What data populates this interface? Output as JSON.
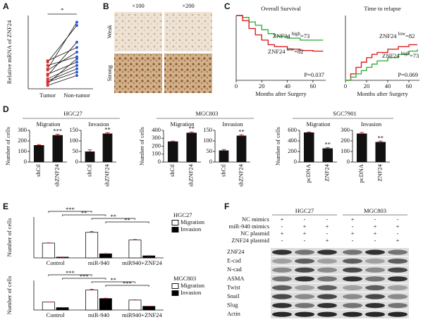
{
  "panel_labels": [
    "A",
    "B",
    "C",
    "D",
    "E",
    "F"
  ],
  "histology": {
    "magnifications": [
      "×100",
      "×200"
    ],
    "rows": [
      "Weak",
      "Strong"
    ]
  },
  "d_groups": [
    "HGC27",
    "MGC803",
    "SGC7901"
  ],
  "chart_data": [
    {
      "type": "paired",
      "ylabel": "Relative mRNA of ZNF24",
      "categories": [
        "Tumor",
        "Non-tumor"
      ],
      "colors": [
        "#e03030",
        "#2a5bd7"
      ],
      "values": [
        [
          0.42,
          0.62
        ],
        [
          0.4,
          0.95
        ],
        [
          0.35,
          0.48
        ],
        [
          0.3,
          1.0
        ],
        [
          0.28,
          0.55
        ],
        [
          0.22,
          0.4
        ],
        [
          0.2,
          0.7
        ],
        [
          0.15,
          0.35
        ],
        [
          0.12,
          0.3
        ],
        [
          0.1,
          0.25
        ],
        [
          0.08,
          0.45
        ],
        [
          0.05,
          0.2
        ]
      ],
      "ylim": [
        0,
        1.1
      ],
      "significance": "*"
    },
    {
      "type": "step",
      "title": "Overall Survival",
      "xlabel": "Months after Surgery",
      "xlim": [
        0,
        70
      ],
      "xticks": [
        0,
        20,
        40,
        60
      ],
      "ylim": [
        0,
        1
      ],
      "series": [
        {
          "color": "#3cb043",
          "x": [
            0,
            5,
            10,
            15,
            20,
            25,
            30,
            40,
            50,
            60,
            68
          ],
          "values": [
            1,
            0.97,
            0.9,
            0.85,
            0.78,
            0.72,
            0.68,
            0.65,
            0.62,
            0.62,
            0.62
          ]
        },
        {
          "color": "#e02020",
          "x": [
            0,
            5,
            10,
            15,
            20,
            25,
            30,
            40,
            50,
            60,
            68
          ],
          "values": [
            1,
            0.92,
            0.8,
            0.7,
            0.62,
            0.55,
            0.52,
            0.48,
            0.46,
            0.45,
            0.45
          ]
        }
      ],
      "annotations": [
        {
          "text": "ZNF24",
          "sup": "high",
          "suffix": "=73"
        },
        {
          "text": "ZNF24",
          "sup": "low",
          "suffix": "=82"
        }
      ],
      "p_value": "P=0.037"
    },
    {
      "type": "step",
      "title": "Time to relapse",
      "xlabel": "Months after Surgery",
      "xlim": [
        0,
        70
      ],
      "xticks": [
        0,
        20,
        40,
        60
      ],
      "ylim": [
        0,
        1
      ],
      "series": [
        {
          "color": "#e02020",
          "x": [
            0,
            5,
            10,
            15,
            20,
            25,
            30,
            40,
            50,
            60,
            68
          ],
          "values": [
            0,
            0.1,
            0.2,
            0.28,
            0.35,
            0.4,
            0.43,
            0.48,
            0.52,
            0.55,
            0.55
          ]
        },
        {
          "color": "#3cb043",
          "x": [
            0,
            5,
            10,
            15,
            20,
            25,
            30,
            40,
            50,
            60,
            68
          ],
          "values": [
            0,
            0.05,
            0.1,
            0.15,
            0.2,
            0.25,
            0.3,
            0.35,
            0.4,
            0.45,
            0.48
          ]
        }
      ],
      "annotations": [
        {
          "text": "ZNF24",
          "sup": "low",
          "suffix": "=82"
        },
        {
          "text": "ZNF24",
          "sup": "high",
          "suffix": "=73"
        }
      ],
      "p_value": "P=0.069"
    },
    {
      "type": "bar",
      "title": "Migration",
      "ylabel": "Number of cells",
      "categories": [
        "shCtl",
        "shZNF24"
      ],
      "values": [
        160,
        255
      ],
      "errors": [
        5,
        8
      ],
      "significance": [
        null,
        "***"
      ],
      "color": "#111111",
      "ylim": [
        0,
        300
      ],
      "yticks": [
        0,
        100,
        200,
        300
      ]
    },
    {
      "type": "bar",
      "title": "Invasion",
      "categories": [
        "shCtl",
        "shZNF24"
      ],
      "values": [
        50,
        135
      ],
      "errors": [
        8,
        4
      ],
      "significance": [
        null,
        "**"
      ],
      "color": "#111111",
      "ylim": [
        0,
        150
      ],
      "yticks": [
        0,
        50,
        100,
        150
      ]
    },
    {
      "type": "bar",
      "title": "Migration",
      "ylabel": "Number of cells",
      "categories": [
        "shCtl",
        "shZNF24"
      ],
      "values": [
        260,
        370
      ],
      "errors": [
        5,
        10
      ],
      "significance": [
        null,
        "**"
      ],
      "color": "#111111",
      "ylim": [
        0,
        400
      ],
      "yticks": [
        0,
        100,
        200,
        300,
        400
      ]
    },
    {
      "type": "bar",
      "title": "Invasion",
      "categories": [
        "shCtl",
        "shZNF24"
      ],
      "values": [
        55,
        125
      ],
      "errors": [
        4,
        4
      ],
      "significance": [
        null,
        "**"
      ],
      "color": "#111111",
      "ylim": [
        0,
        150
      ],
      "yticks": [
        0,
        50,
        100,
        150
      ]
    },
    {
      "type": "bar",
      "title": "Migration",
      "ylabel": "Number of cells",
      "categories": [
        "pcDNA",
        "ZNF24"
      ],
      "values": [
        560,
        260
      ],
      "errors": [
        10,
        15
      ],
      "significance": [
        null,
        "**"
      ],
      "color": "#111111",
      "ylim": [
        0,
        600
      ],
      "yticks": [
        0,
        200,
        400,
        600
      ]
    },
    {
      "type": "bar",
      "title": "Invasion",
      "categories": [
        "pcDNA",
        "ZNF24"
      ],
      "values": [
        270,
        190
      ],
      "errors": [
        10,
        8
      ],
      "significance": [
        null,
        "**"
      ],
      "color": "#111111",
      "ylim": [
        0,
        300
      ],
      "yticks": [
        0,
        100,
        200,
        300
      ]
    },
    {
      "type": "grouped-bar",
      "title": "HGC27",
      "ylabel": "Number of cells",
      "categories": [
        "Control",
        "miR-940",
        "miR940+ZNF24"
      ],
      "series": [
        {
          "name": "Migration",
          "color": "#ffffff",
          "values": [
            290,
            500,
            350
          ],
          "errors": [
            5,
            15,
            8
          ]
        },
        {
          "name": "Invasion",
          "color": "#000000",
          "values": [
            15,
            80,
            40
          ],
          "errors": [
            2,
            5,
            3
          ]
        }
      ],
      "ylim": [
        0,
        800
      ],
      "brackets": [
        {
          "from": 0,
          "to": 1,
          "label": "***"
        },
        {
          "from": 0,
          "to": 1,
          "label": "**"
        },
        {
          "from": 1,
          "to": 2,
          "label": "**"
        },
        {
          "from": 1,
          "to": 2,
          "label": "**"
        }
      ]
    },
    {
      "type": "grouped-bar",
      "title": "MGC803",
      "ylabel": "Number of cells",
      "categories": [
        "Control",
        "miR-940",
        "miR940+ZNF24"
      ],
      "series": [
        {
          "name": "Migration",
          "color": "#ffffff",
          "values": [
            215,
            540,
            270
          ],
          "errors": [
            5,
            20,
            6
          ]
        },
        {
          "name": "Invasion",
          "color": "#000000",
          "values": [
            65,
            310,
            100
          ],
          "errors": [
            3,
            8,
            4
          ]
        }
      ],
      "ylim": [
        0,
        800
      ],
      "brackets": [
        {
          "from": 0,
          "to": 1,
          "label": "***"
        },
        {
          "from": 0,
          "to": 1,
          "label": "***"
        },
        {
          "from": 1,
          "to": 2,
          "label": "**"
        },
        {
          "from": 1,
          "to": 2,
          "label": "***"
        }
      ]
    }
  ],
  "western_blot": {
    "cell_lines": [
      "HGC27",
      "MGC803"
    ],
    "conditions": [
      {
        "label": "NC mimics",
        "signs": [
          "+",
          "-",
          "-",
          "+",
          "-",
          "-"
        ]
      },
      {
        "label": "miR-940 mimics",
        "signs": [
          "-",
          "+",
          "+",
          "-",
          "+",
          "+"
        ]
      },
      {
        "label": "NC plasmid",
        "signs": [
          "+",
          "+",
          "-",
          "+",
          "+",
          "-"
        ]
      },
      {
        "label": "ZNF24 plasmid",
        "signs": [
          "-",
          "-",
          "+",
          "-",
          "-",
          "+"
        ]
      }
    ],
    "proteins": [
      "ZNF24",
      "E-cad",
      "N-cad",
      "ASMA",
      "Twist",
      "Snail",
      "Slug",
      "Actin"
    ]
  }
}
